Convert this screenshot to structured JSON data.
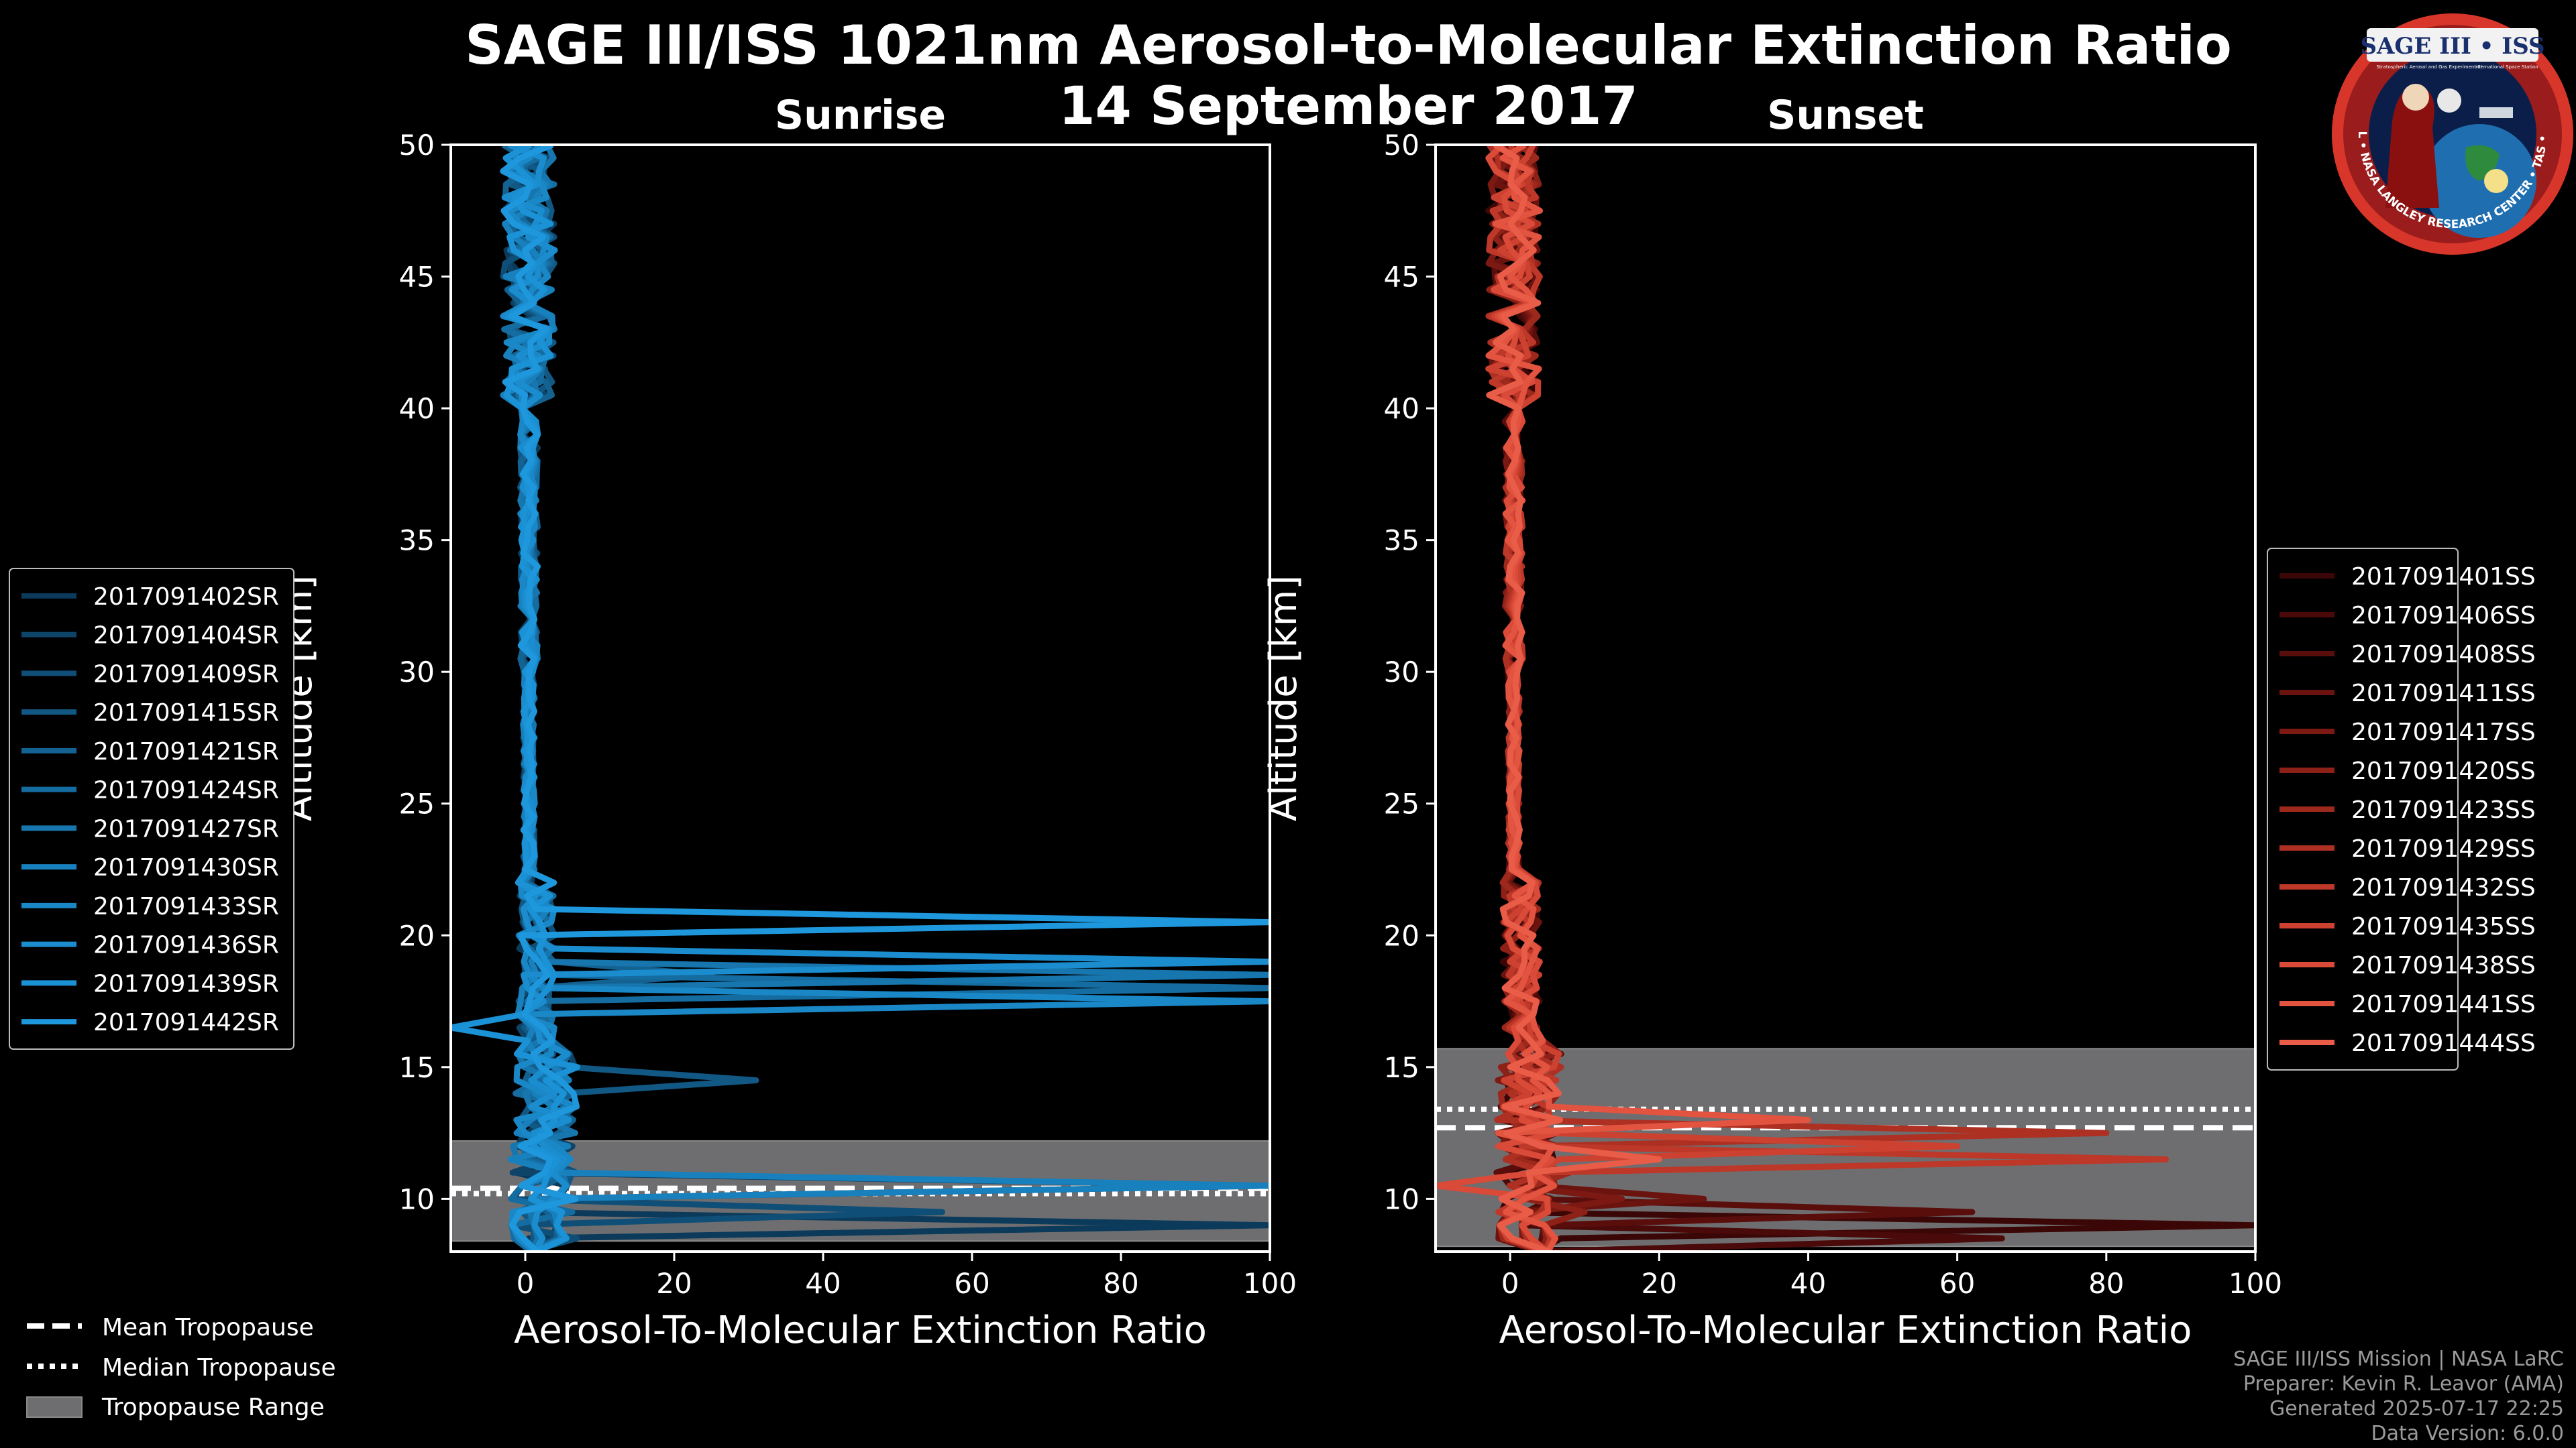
{
  "figure": {
    "title": "SAGE III/ISS 1021nm Aerosol-to-Molecular Extinction Ratio",
    "date": "14 September 2017",
    "colors": {
      "background": "#000000",
      "sunrise": "#1a8fd1",
      "sunset": "#e8584a",
      "tropopause_range": "#6e6e70"
    }
  },
  "logo": {
    "text": "SAGE III • ISS",
    "subtitle_left": "Stratospheric Aerosol and Gas Experiment III",
    "subtitle_right": "International Space Station",
    "ring_text": "BALL • NASA LANGLEY RESEARCH CENTER • TAS • ESA"
  },
  "tropopause_legend": {
    "items": [
      {
        "label": "Mean Tropopause",
        "style": "dashed"
      },
      {
        "label": "Median Tropopause",
        "style": "dotted"
      },
      {
        "label": "Tropopause Range",
        "style": "patch"
      }
    ]
  },
  "credits": {
    "lines": [
      "SAGE III/ISS Mission | NASA LaRC",
      "Preparer: Kevin R. Leavor (AMA)",
      "Generated 2025-07-17 22:25",
      "Data Version: 6.0.0"
    ]
  },
  "chart_data": [
    {
      "type": "line",
      "panel": "sunrise",
      "title": "Sunrise",
      "xlabel": "Aerosol-To-Molecular Extinction Ratio",
      "ylabel": "Altitude [km]",
      "xlim": [
        -10,
        100
      ],
      "ylim": [
        8,
        50
      ],
      "xticks": [
        0,
        20,
        40,
        60,
        80,
        100
      ],
      "yticks": [
        10,
        15,
        20,
        25,
        30,
        35,
        40,
        45,
        50
      ],
      "grid": false,
      "legend_position": "left",
      "tropopause": {
        "mean": 10.4,
        "median": 10.2,
        "min": 8.4,
        "max": 12.2
      },
      "series": [
        {
          "name": "2017091402SR",
          "color": "#0b3a5a",
          "spike": {
            "alt": 8.9,
            "value": 100
          }
        },
        {
          "name": "2017091404SR",
          "color": "#0d4468",
          "spike": {
            "alt": 10.6,
            "value": 100
          }
        },
        {
          "name": "2017091409SR",
          "color": "#0f4e76",
          "spike": {
            "alt": 9.6,
            "value": 56
          }
        },
        {
          "name": "2017091415SR",
          "color": "#115884",
          "spike": {
            "alt": 14.6,
            "value": 31
          }
        },
        {
          "name": "2017091421SR",
          "color": "#136292",
          "spike": {
            "alt": 18.3,
            "value": 25
          }
        },
        {
          "name": "2017091424SR",
          "color": "#156ca0",
          "spike": {
            "alt": 17.8,
            "value": 100
          }
        },
        {
          "name": "2017091427SR",
          "color": "#1776ae",
          "spike": {
            "alt": 18.6,
            "value": 100
          }
        },
        {
          "name": "2017091430SR",
          "color": "#1880bc",
          "spike": {
            "alt": 10.3,
            "value": 100
          }
        },
        {
          "name": "2017091433SR",
          "color": "#1a87c6",
          "spike": {
            "alt": 17.4,
            "value": 100
          }
        },
        {
          "name": "2017091436SR",
          "color": "#1b8dcf",
          "spike": {
            "alt": 18.8,
            "value": 100
          }
        },
        {
          "name": "2017091439SR",
          "color": "#1c92d6",
          "spike": {
            "alt": 16.5,
            "value": -10
          }
        },
        {
          "name": "2017091442SR",
          "color": "#1e97dc",
          "spike": {
            "alt": 20.3,
            "value": 100
          }
        }
      ]
    },
    {
      "type": "line",
      "panel": "sunset",
      "title": "Sunset",
      "xlabel": "Aerosol-To-Molecular Extinction Ratio",
      "ylabel": "Altitude [km]",
      "xlim": [
        -10,
        100
      ],
      "ylim": [
        8,
        50
      ],
      "xticks": [
        0,
        20,
        40,
        60,
        80,
        100
      ],
      "yticks": [
        10,
        15,
        20,
        25,
        30,
        35,
        40,
        45,
        50
      ],
      "grid": false,
      "legend_position": "right",
      "tropopause": {
        "mean": 12.7,
        "median": 13.4,
        "min": 8.2,
        "max": 15.7
      },
      "series": [
        {
          "name": "2017091401SS",
          "color": "#3a0606",
          "spike": {
            "alt": 9.0,
            "value": 100
          }
        },
        {
          "name": "2017091406SS",
          "color": "#4a0a09",
          "spike": {
            "alt": 8.6,
            "value": 66
          }
        },
        {
          "name": "2017091408SS",
          "color": "#5a0e0c",
          "spike": {
            "alt": 9.3,
            "value": 62
          }
        },
        {
          "name": "2017091411SS",
          "color": "#6b130f",
          "spike": {
            "alt": 10.0,
            "value": 26
          }
        },
        {
          "name": "2017091417SS",
          "color": "#7c1913",
          "spike": {
            "alt": 9.8,
            "value": 15
          }
        },
        {
          "name": "2017091420SS",
          "color": "#8d2017",
          "spike": {
            "alt": 9.4,
            "value": 10
          }
        },
        {
          "name": "2017091423SS",
          "color": "#9d281c",
          "spike": {
            "alt": 11.0,
            "value": 8
          }
        },
        {
          "name": "2017091429SS",
          "color": "#ad3022",
          "spike": {
            "alt": 12.6,
            "value": 80
          }
        },
        {
          "name": "2017091432SS",
          "color": "#bd3829",
          "spike": {
            "alt": 11.5,
            "value": 88
          }
        },
        {
          "name": "2017091435SS",
          "color": "#cc4130",
          "spike": {
            "alt": 11.8,
            "value": 60
          }
        },
        {
          "name": "2017091438SS",
          "color": "#d94a38",
          "spike": {
            "alt": 10.7,
            "value": -10
          }
        },
        {
          "name": "2017091441SS",
          "color": "#e25340",
          "spike": {
            "alt": 12.9,
            "value": 40
          }
        },
        {
          "name": "2017091444SS",
          "color": "#e85c48",
          "spike": {
            "alt": 11.3,
            "value": 20
          }
        }
      ]
    }
  ]
}
